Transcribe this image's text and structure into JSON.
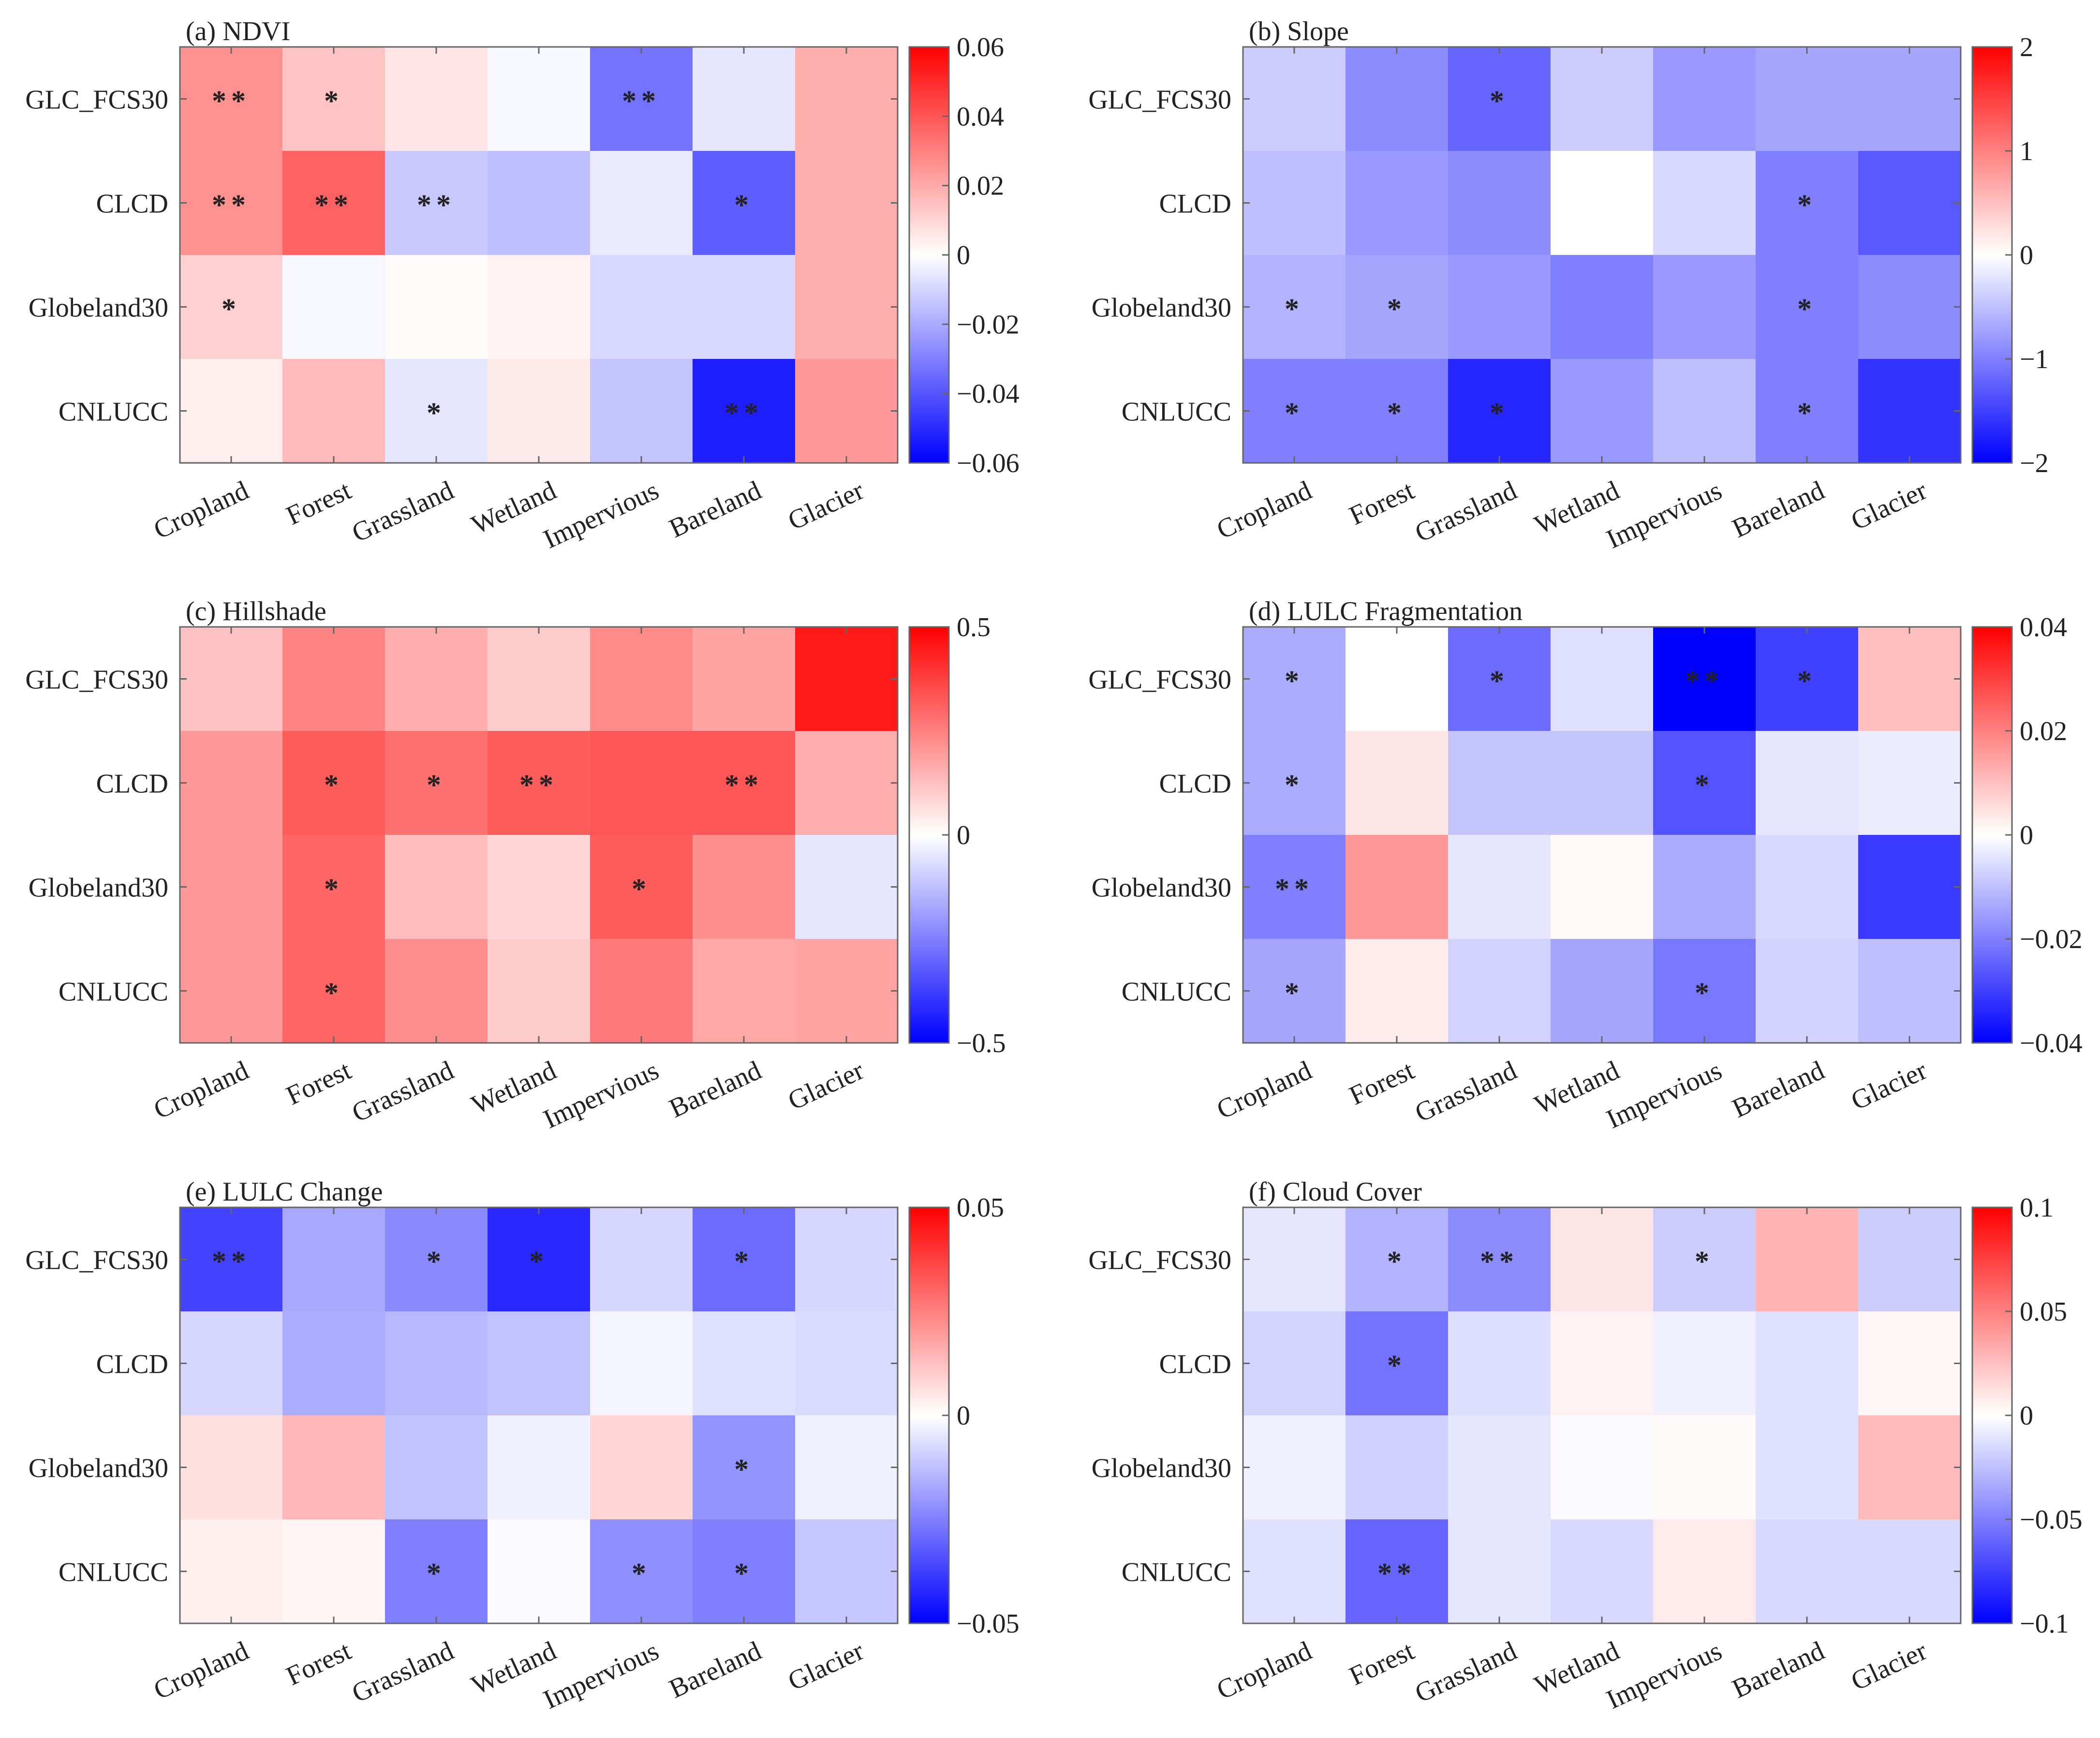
{
  "chart_data": [
    {
      "type": "heatmap",
      "title": "(a) NDVI",
      "rows": [
        "GLC_FCS30",
        "CLCD",
        "Globeland30",
        "CNLUCC"
      ],
      "columns": [
        "Cropland",
        "Forest",
        "Grassland",
        "Wetland",
        "Impervious",
        "Bareland",
        "Glacier"
      ],
      "values": [
        [
          0.026,
          0.014,
          0.006,
          -0.002,
          -0.033,
          -0.006,
          0.019
        ],
        [
          0.026,
          0.037,
          -0.013,
          -0.015,
          -0.005,
          -0.038,
          0.019
        ],
        [
          0.011,
          -0.002,
          0.001,
          0.003,
          -0.009,
          -0.009,
          0.019
        ],
        [
          0.004,
          0.016,
          -0.006,
          0.005,
          -0.014,
          -0.053,
          0.024
        ]
      ],
      "significance": [
        [
          "**",
          "*",
          "",
          "",
          "**",
          "",
          ""
        ],
        [
          "**",
          "**",
          "**",
          "",
          "",
          "*",
          ""
        ],
        [
          "*",
          "",
          "",
          "",
          "",
          "",
          ""
        ],
        [
          "",
          "",
          "*",
          "",
          "",
          "**",
          ""
        ]
      ],
      "colorbar": {
        "min": -0.06,
        "max": 0.06,
        "ticks": [
          0.06,
          0.04,
          0.02,
          0,
          -0.02,
          -0.04,
          -0.06
        ],
        "tick_labels": [
          "0.06",
          "0.04",
          "0.02",
          "0",
          "−0.02",
          "−0.04",
          "−0.06"
        ]
      }
    },
    {
      "type": "heatmap",
      "title": "(b) Slope",
      "rows": [
        "GLC_FCS30",
        "CLCD",
        "Globeland30",
        "CNLUCC"
      ],
      "columns": [
        "Cropland",
        "Forest",
        "Grassland",
        "Wetland",
        "Impervious",
        "Bareland",
        "Glacier"
      ],
      "values": [
        [
          -0.4,
          -0.9,
          -1.2,
          -0.4,
          -0.8,
          -0.7,
          -0.7
        ],
        [
          -0.5,
          -0.8,
          -0.9,
          0.0,
          -0.3,
          -1.0,
          -1.3
        ],
        [
          -0.6,
          -0.7,
          -0.8,
          -1.0,
          -0.8,
          -1.0,
          -0.9
        ],
        [
          -1.0,
          -1.0,
          -1.7,
          -0.8,
          -0.5,
          -1.0,
          -1.6
        ]
      ],
      "significance": [
        [
          "",
          "",
          "*",
          "",
          "",
          "",
          ""
        ],
        [
          "",
          "",
          "",
          "",
          "",
          "*",
          ""
        ],
        [
          "*",
          "*",
          "",
          "",
          "",
          "*",
          ""
        ],
        [
          "*",
          "*",
          "*",
          "",
          "",
          "*",
          ""
        ]
      ],
      "colorbar": {
        "min": -2,
        "max": 2,
        "ticks": [
          2,
          1,
          0,
          -1,
          -2
        ],
        "tick_labels": [
          "2",
          "1",
          "0",
          "−1",
          "−2"
        ]
      }
    },
    {
      "type": "heatmap",
      "title": "(c) Hillshade",
      "rows": [
        "GLC_FCS30",
        "CLCD",
        "Globeland30",
        "CNLUCC"
      ],
      "columns": [
        "Cropland",
        "Forest",
        "Grassland",
        "Wetland",
        "Impervious",
        "Bareland",
        "Glacier"
      ],
      "values": [
        [
          0.12,
          0.24,
          0.16,
          0.1,
          0.23,
          0.18,
          0.45
        ],
        [
          0.2,
          0.32,
          0.28,
          0.32,
          0.33,
          0.33,
          0.16
        ],
        [
          0.2,
          0.3,
          0.13,
          0.08,
          0.32,
          0.22,
          -0.05
        ],
        [
          0.2,
          0.3,
          0.22,
          0.1,
          0.26,
          0.17,
          0.18
        ]
      ],
      "significance": [
        [
          "",
          "",
          "",
          "",
          "",
          "",
          ""
        ],
        [
          "",
          "*",
          "*",
          "**",
          "",
          "**",
          ""
        ],
        [
          "",
          "*",
          "",
          "",
          "*",
          "",
          ""
        ],
        [
          "",
          "*",
          "",
          "",
          "",
          "",
          ""
        ]
      ],
      "colorbar": {
        "min": -0.5,
        "max": 0.5,
        "ticks": [
          0.5,
          0,
          -0.5
        ],
        "tick_labels": [
          "0.5",
          "0",
          "−0.5"
        ]
      }
    },
    {
      "type": "heatmap",
      "title": "(d) LULC Fragmentation",
      "rows": [
        "GLC_FCS30",
        "CLCD",
        "Globeland30",
        "CNLUCC"
      ],
      "columns": [
        "Cropland",
        "Forest",
        "Grassland",
        "Wetland",
        "Impervious",
        "Bareland",
        "Glacier"
      ],
      "values": [
        [
          -0.013,
          0.0,
          -0.023,
          -0.005,
          -0.04,
          -0.03,
          0.01
        ],
        [
          -0.013,
          0.004,
          -0.009,
          -0.009,
          -0.027,
          -0.004,
          -0.003
        ],
        [
          -0.02,
          0.016,
          -0.004,
          0.001,
          -0.013,
          -0.006,
          -0.031
        ],
        [
          -0.014,
          0.003,
          -0.007,
          -0.014,
          -0.021,
          -0.007,
          -0.01
        ]
      ],
      "significance": [
        [
          "*",
          "",
          "*",
          "",
          "**",
          "*",
          ""
        ],
        [
          "*",
          "",
          "",
          "",
          "*",
          "",
          ""
        ],
        [
          "**",
          "",
          "",
          "",
          "",
          "",
          ""
        ],
        [
          "*",
          "",
          "",
          "",
          "*",
          "",
          ""
        ]
      ],
      "colorbar": {
        "min": -0.04,
        "max": 0.04,
        "ticks": [
          0.04,
          0.02,
          0,
          -0.02,
          -0.04
        ],
        "tick_labels": [
          "0.04",
          "0.02",
          "0",
          "−0.02",
          "−0.04"
        ]
      }
    },
    {
      "type": "heatmap",
      "title": "(e) LULC Change",
      "rows": [
        "GLC_FCS30",
        "CLCD",
        "Globeland30",
        "CNLUCC"
      ],
      "columns": [
        "Cropland",
        "Forest",
        "Grassland",
        "Wetland",
        "Impervious",
        "Bareland",
        "Glacier"
      ],
      "values": [
        [
          -0.037,
          -0.017,
          -0.023,
          -0.042,
          -0.008,
          -0.029,
          -0.008
        ],
        [
          -0.008,
          -0.016,
          -0.014,
          -0.012,
          -0.002,
          -0.006,
          -0.007
        ],
        [
          0.006,
          0.014,
          -0.012,
          -0.003,
          0.008,
          -0.021,
          -0.003
        ],
        [
          0.003,
          0.002,
          -0.025,
          -0.001,
          -0.022,
          -0.025,
          -0.011
        ]
      ],
      "significance": [
        [
          "**",
          "",
          "*",
          "*",
          "",
          "*",
          ""
        ],
        [
          "",
          "",
          "",
          "",
          "",
          "",
          ""
        ],
        [
          "",
          "",
          "",
          "",
          "",
          "*",
          ""
        ],
        [
          "",
          "",
          "*",
          "",
          "*",
          "*",
          ""
        ]
      ],
      "colorbar": {
        "min": -0.05,
        "max": 0.05,
        "ticks": [
          0.05,
          0,
          -0.05
        ],
        "tick_labels": [
          "0.05",
          "0",
          "−0.05"
        ]
      }
    },
    {
      "type": "heatmap",
      "title": "(f) Cloud Cover",
      "rows": [
        "GLC_FCS30",
        "CLCD",
        "Globeland30",
        "CNLUCC"
      ],
      "columns": [
        "Cropland",
        "Forest",
        "Grassland",
        "Wetland",
        "Impervious",
        "Bareland",
        "Glacier"
      ],
      "values": [
        [
          -0.01,
          -0.03,
          -0.045,
          0.01,
          -0.02,
          0.03,
          -0.02
        ],
        [
          -0.017,
          -0.055,
          -0.013,
          0.005,
          -0.006,
          -0.012,
          0.003
        ],
        [
          -0.006,
          -0.018,
          -0.01,
          -0.002,
          0.002,
          -0.012,
          0.027
        ],
        [
          -0.012,
          -0.06,
          -0.01,
          -0.015,
          0.008,
          -0.015,
          -0.015
        ]
      ],
      "significance": [
        [
          "",
          "*",
          "**",
          "",
          "*",
          "",
          ""
        ],
        [
          "",
          "*",
          "",
          "",
          "",
          "",
          ""
        ],
        [
          "",
          "",
          "",
          "",
          "",
          "",
          ""
        ],
        [
          "",
          "**",
          "",
          "",
          "",
          "",
          ""
        ]
      ],
      "colorbar": {
        "min": -0.1,
        "max": 0.1,
        "ticks": [
          0.1,
          0.05,
          0,
          -0.05,
          -0.1
        ],
        "tick_labels": [
          "0.1",
          "0.05",
          "0",
          "−0.05",
          "−0.1"
        ]
      }
    }
  ]
}
